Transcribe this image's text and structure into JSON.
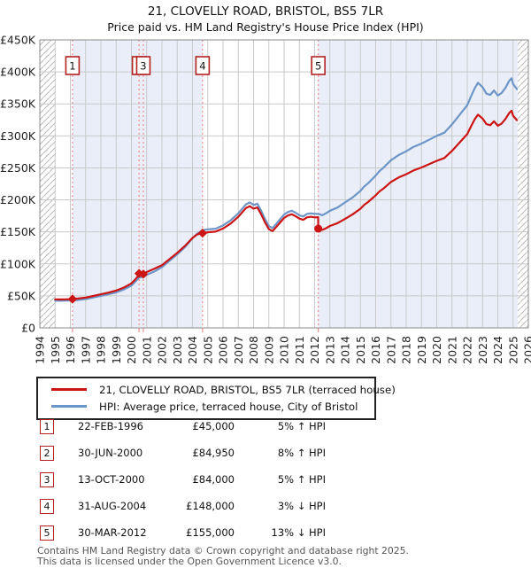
{
  "page_title": {
    "line1": "21, CLOVELLY ROAD, BRISTOL, BS5 7LR",
    "line2": "Price paid vs. HM Land Registry's House Price Index (HPI)"
  },
  "legend": {
    "entries": [
      {
        "label": "21, CLOVELLY ROAD, BRISTOL, BS5 7LR (terraced house)",
        "color": "#cc1414"
      },
      {
        "label": "HPI: Average price, terraced house, City of Bristol",
        "color": "#6d96c8"
      }
    ]
  },
  "sales": [
    {
      "num": "1",
      "date": "22-FEB-1996",
      "price": "£45,000",
      "hpi_delta": "5% ↑ HPI",
      "year": 1996.14,
      "value_k": 45,
      "marker": "diamond"
    },
    {
      "num": "2",
      "date": "30-JUN-2000",
      "price": "£84,950",
      "hpi_delta": "8% ↑ HPI",
      "year": 2000.5,
      "value_k": 85,
      "marker": "diamond"
    },
    {
      "num": "3",
      "date": "13-OCT-2000",
      "price": "£84,000",
      "hpi_delta": "5% ↑ HPI",
      "year": 2000.78,
      "value_k": 84,
      "marker": "diamond"
    },
    {
      "num": "4",
      "date": "31-AUG-2004",
      "price": "£148,000",
      "hpi_delta": "3% ↓ HPI",
      "year": 2004.66,
      "value_k": 148,
      "marker": "diamond"
    },
    {
      "num": "5",
      "date": "30-MAR-2012",
      "price": "£155,000",
      "hpi_delta": "13% ↓ HPI",
      "year": 2012.24,
      "value_k": 155,
      "marker": "circle"
    }
  ],
  "chart_data": {
    "type": "line",
    "title": "21, CLOVELLY ROAD, BRISTOL, BS5 7LR — Price paid vs. HPI",
    "x_axis": {
      "min": 1994,
      "max": 2026,
      "tick_labels": [
        "1994",
        "1995",
        "1996",
        "1997",
        "1998",
        "1999",
        "2000",
        "2001",
        "2002",
        "2003",
        "2004",
        "2005",
        "2006",
        "2007",
        "2008",
        "2009",
        "2010",
        "2011",
        "2012",
        "2013",
        "2014",
        "2015",
        "2016",
        "2017",
        "2018",
        "2019",
        "2020",
        "2021",
        "2022",
        "2023",
        "2024",
        "2025",
        "2026"
      ]
    },
    "y_axis": {
      "min": 0,
      "max": 450,
      "unit": "£1000s",
      "tick_values": [
        0,
        50,
        100,
        150,
        200,
        250,
        300,
        350,
        400,
        450
      ],
      "tick_labels": [
        "£0",
        "£50K",
        "£100K",
        "£150K",
        "£200K",
        "£250K",
        "£300K",
        "£350K",
        "£400K",
        "£450K"
      ]
    },
    "grid": true,
    "legend_position": "below",
    "no_data_regions": [
      [
        1994,
        1995.05
      ],
      [
        2025.3,
        2026
      ]
    ],
    "ownership_shade_regions": [
      [
        1996.14,
        2004.66
      ],
      [
        2012.24,
        2025.3
      ]
    ],
    "series": [
      {
        "name": "21, CLOVELLY ROAD, BRISTOL, BS5 7LR (terraced house)",
        "color": "#cc1414",
        "points": [
          [
            1995.0,
            44.6
          ],
          [
            1995.3,
            44.4
          ],
          [
            1995.6,
            44.6
          ],
          [
            1996.0,
            44.9
          ],
          [
            1996.14,
            45.0
          ],
          [
            1996.5,
            45.8
          ],
          [
            1997.0,
            47.3
          ],
          [
            1997.5,
            49.9
          ],
          [
            1998.0,
            52.5
          ],
          [
            1998.5,
            55.1
          ],
          [
            1999.0,
            58.3
          ],
          [
            1999.5,
            63.0
          ],
          [
            1999.75,
            66.2
          ],
          [
            2000.0,
            69.3
          ],
          [
            2000.25,
            75.6
          ],
          [
            2000.49,
            82.6
          ],
          [
            2000.5,
            85.0
          ],
          [
            2000.65,
            85.5
          ],
          [
            2000.77,
            86.3
          ],
          [
            2000.78,
            84.0
          ],
          [
            2001.0,
            87.2
          ],
          [
            2001.5,
            92.4
          ],
          [
            2002.0,
            97.9
          ],
          [
            2002.5,
            107.6
          ],
          [
            2003.0,
            117.3
          ],
          [
            2003.5,
            128.0
          ],
          [
            2004.0,
            140.5
          ],
          [
            2004.3,
            146.0
          ],
          [
            2004.66,
            148.0
          ],
          [
            2005.0,
            149.4
          ],
          [
            2005.5,
            150.4
          ],
          [
            2006.0,
            155.2
          ],
          [
            2006.5,
            163.0
          ],
          [
            2007.0,
            173.6
          ],
          [
            2007.25,
            180.4
          ],
          [
            2007.5,
            187.2
          ],
          [
            2007.75,
            190.1
          ],
          [
            2008.0,
            186.2
          ],
          [
            2008.25,
            188.2
          ],
          [
            2008.5,
            177.5
          ],
          [
            2008.75,
            164.9
          ],
          [
            2009.0,
            154.2
          ],
          [
            2009.25,
            151.3
          ],
          [
            2009.5,
            158.1
          ],
          [
            2009.75,
            164.9
          ],
          [
            2010.0,
            171.7
          ],
          [
            2010.25,
            175.6
          ],
          [
            2010.5,
            177.5
          ],
          [
            2010.75,
            174.6
          ],
          [
            2011.0,
            170.7
          ],
          [
            2011.25,
            168.8
          ],
          [
            2011.5,
            172.7
          ],
          [
            2011.75,
            173.6
          ],
          [
            2012.0,
            172.7
          ],
          [
            2012.23,
            172.9
          ],
          [
            2012.24,
            155.0
          ],
          [
            2012.5,
            153.1
          ],
          [
            2012.75,
            155.7
          ],
          [
            2013.0,
            159.2
          ],
          [
            2013.5,
            163.6
          ],
          [
            2014.0,
            170.5
          ],
          [
            2014.5,
            177.5
          ],
          [
            2015.0,
            186.2
          ],
          [
            2015.25,
            192.3
          ],
          [
            2015.5,
            196.6
          ],
          [
            2016.0,
            207.1
          ],
          [
            2016.25,
            213.2
          ],
          [
            2016.5,
            217.5
          ],
          [
            2017.0,
            228.0
          ],
          [
            2017.5,
            234.9
          ],
          [
            2018.0,
            240.1
          ],
          [
            2018.5,
            246.2
          ],
          [
            2019.0,
            250.6
          ],
          [
            2019.5,
            255.8
          ],
          [
            2020.0,
            261.0
          ],
          [
            2020.5,
            265.4
          ],
          [
            2021.0,
            276.7
          ],
          [
            2021.5,
            289.7
          ],
          [
            2022.0,
            302.8
          ],
          [
            2022.25,
            315.0
          ],
          [
            2022.5,
            326.3
          ],
          [
            2022.7,
            333.2
          ],
          [
            2023.0,
            327.1
          ],
          [
            2023.25,
            318.4
          ],
          [
            2023.5,
            316.7
          ],
          [
            2023.75,
            322.8
          ],
          [
            2024.0,
            315.8
          ],
          [
            2024.25,
            319.3
          ],
          [
            2024.5,
            326.3
          ],
          [
            2024.75,
            335.8
          ],
          [
            2024.9,
            339.3
          ],
          [
            2025.0,
            331.5
          ],
          [
            2025.25,
            324.5
          ]
        ]
      },
      {
        "name": "HPI: Average price, terraced house, City of Bristol",
        "color": "#6d96c8",
        "points": [
          [
            1995.0,
            42.5
          ],
          [
            1995.3,
            42.3
          ],
          [
            1995.6,
            42.5
          ],
          [
            1996.0,
            42.8
          ],
          [
            1996.14,
            42.9
          ],
          [
            1996.5,
            43.6
          ],
          [
            1997.0,
            45.0
          ],
          [
            1997.5,
            47.5
          ],
          [
            1998.0,
            50.0
          ],
          [
            1998.5,
            52.5
          ],
          [
            1999.0,
            55.5
          ],
          [
            1999.5,
            60.0
          ],
          [
            1999.75,
            63.0
          ],
          [
            2000.0,
            66.0
          ],
          [
            2000.25,
            72.0
          ],
          [
            2000.5,
            78.7
          ],
          [
            2000.78,
            80.0
          ],
          [
            2001.0,
            83.0
          ],
          [
            2001.5,
            88.0
          ],
          [
            2002.0,
            95.0
          ],
          [
            2002.5,
            105.0
          ],
          [
            2003.0,
            115.0
          ],
          [
            2003.5,
            126.0
          ],
          [
            2004.0,
            140.0
          ],
          [
            2004.3,
            147.0
          ],
          [
            2004.66,
            152.6
          ],
          [
            2005.0,
            154.0
          ],
          [
            2005.5,
            155.0
          ],
          [
            2006.0,
            160.0
          ],
          [
            2006.5,
            168.0
          ],
          [
            2007.0,
            179.0
          ],
          [
            2007.25,
            186.0
          ],
          [
            2007.5,
            193.0
          ],
          [
            2007.75,
            196.0
          ],
          [
            2008.0,
            192.0
          ],
          [
            2008.25,
            194.0
          ],
          [
            2008.5,
            183.0
          ],
          [
            2008.75,
            170.0
          ],
          [
            2009.0,
            159.0
          ],
          [
            2009.25,
            156.0
          ],
          [
            2009.5,
            163.0
          ],
          [
            2009.75,
            170.0
          ],
          [
            2010.0,
            177.0
          ],
          [
            2010.25,
            181.0
          ],
          [
            2010.5,
            183.0
          ],
          [
            2010.75,
            180.0
          ],
          [
            2011.0,
            176.0
          ],
          [
            2011.25,
            174.0
          ],
          [
            2011.5,
            178.0
          ],
          [
            2011.75,
            179.0
          ],
          [
            2012.0,
            178.0
          ],
          [
            2012.24,
            178.2
          ],
          [
            2012.5,
            176.0
          ],
          [
            2012.75,
            179.0
          ],
          [
            2013.0,
            183.0
          ],
          [
            2013.5,
            188.0
          ],
          [
            2014.0,
            196.0
          ],
          [
            2014.5,
            204.0
          ],
          [
            2015.0,
            214.0
          ],
          [
            2015.25,
            221.0
          ],
          [
            2015.5,
            226.0
          ],
          [
            2016.0,
            238.0
          ],
          [
            2016.25,
            245.0
          ],
          [
            2016.5,
            250.0
          ],
          [
            2017.0,
            262.0
          ],
          [
            2017.5,
            270.0
          ],
          [
            2018.0,
            276.0
          ],
          [
            2018.5,
            283.0
          ],
          [
            2019.0,
            288.0
          ],
          [
            2019.5,
            294.0
          ],
          [
            2020.0,
            300.0
          ],
          [
            2020.5,
            305.0
          ],
          [
            2021.0,
            318.0
          ],
          [
            2021.5,
            333.0
          ],
          [
            2022.0,
            348.0
          ],
          [
            2022.25,
            362.0
          ],
          [
            2022.5,
            375.0
          ],
          [
            2022.7,
            383.0
          ],
          [
            2023.0,
            376.0
          ],
          [
            2023.25,
            366.0
          ],
          [
            2023.5,
            364.0
          ],
          [
            2023.75,
            371.0
          ],
          [
            2024.0,
            363.0
          ],
          [
            2024.25,
            367.0
          ],
          [
            2024.5,
            375.0
          ],
          [
            2024.75,
            386.0
          ],
          [
            2024.9,
            390.0
          ],
          [
            2025.0,
            381.0
          ],
          [
            2025.25,
            373.0
          ]
        ]
      }
    ]
  },
  "footer": {
    "line1": "Contains HM Land Registry data © Crown copyright and database right 2025.",
    "line2": "This data is licensed under the Open Government Licence v3.0."
  },
  "colors": {
    "band": "#e9eef8",
    "grid": "#c9c9c9",
    "border": "#8a8a8a",
    "dashed_sale_line": "#f28f8f",
    "marker": "#cc1414",
    "hatch": "#b9b9b9",
    "axis_text": "#222222"
  }
}
